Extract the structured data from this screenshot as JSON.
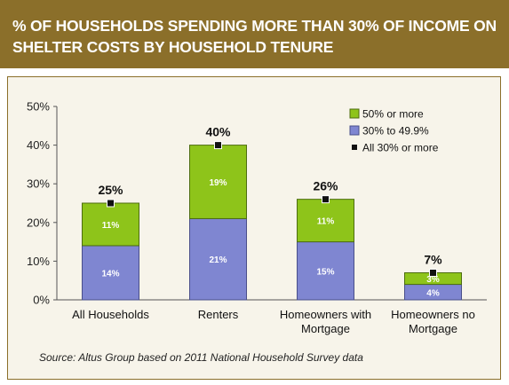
{
  "header": {
    "title": "% OF HOUSEHOLDS SPENDING MORE THAN 30% OF INCOME ON SHELTER COSTS BY HOUSEHOLD TENURE"
  },
  "source": "Source:  Altus Group based on 2011 National Household Survey data",
  "colors": {
    "header_bg": "#8b6f2a",
    "panel_bg": "#f7f4ea",
    "series_30_49": "#7f86d1",
    "series_50_plus": "#8ec41a",
    "marker": "#111111"
  },
  "chart_data": {
    "type": "bar",
    "stacked": true,
    "categories": [
      "All Households",
      "Renters",
      "Homeowners with Mortgage",
      "Homeowners no Mortgage"
    ],
    "category_lines": [
      [
        "All Households"
      ],
      [
        "Renters"
      ],
      [
        "Homeowners with",
        "Mortgage"
      ],
      [
        "Homeowners no",
        "Mortgage"
      ]
    ],
    "series": [
      {
        "name": "30% to 49.9%",
        "values": [
          14,
          21,
          15,
          4
        ],
        "labels": [
          "14%",
          "21%",
          "15%",
          "4%"
        ]
      },
      {
        "name": "50% or more",
        "values": [
          11,
          19,
          11,
          3
        ],
        "labels": [
          "11%",
          "19%",
          "11%",
          "3%"
        ]
      }
    ],
    "totals": {
      "name": "All 30% or more",
      "values": [
        25,
        40,
        26,
        7
      ],
      "labels": [
        "25%",
        "40%",
        "26%",
        "7%"
      ]
    },
    "y_ticks": [
      "0%",
      "10%",
      "20%",
      "30%",
      "40%",
      "50%"
    ],
    "ylim": [
      0,
      50
    ],
    "grid": false,
    "legend_position": "top-right",
    "legend": [
      "50% or more",
      "30% to 49.9%",
      "All 30% or more"
    ],
    "title": "",
    "xlabel": "",
    "ylabel": ""
  }
}
